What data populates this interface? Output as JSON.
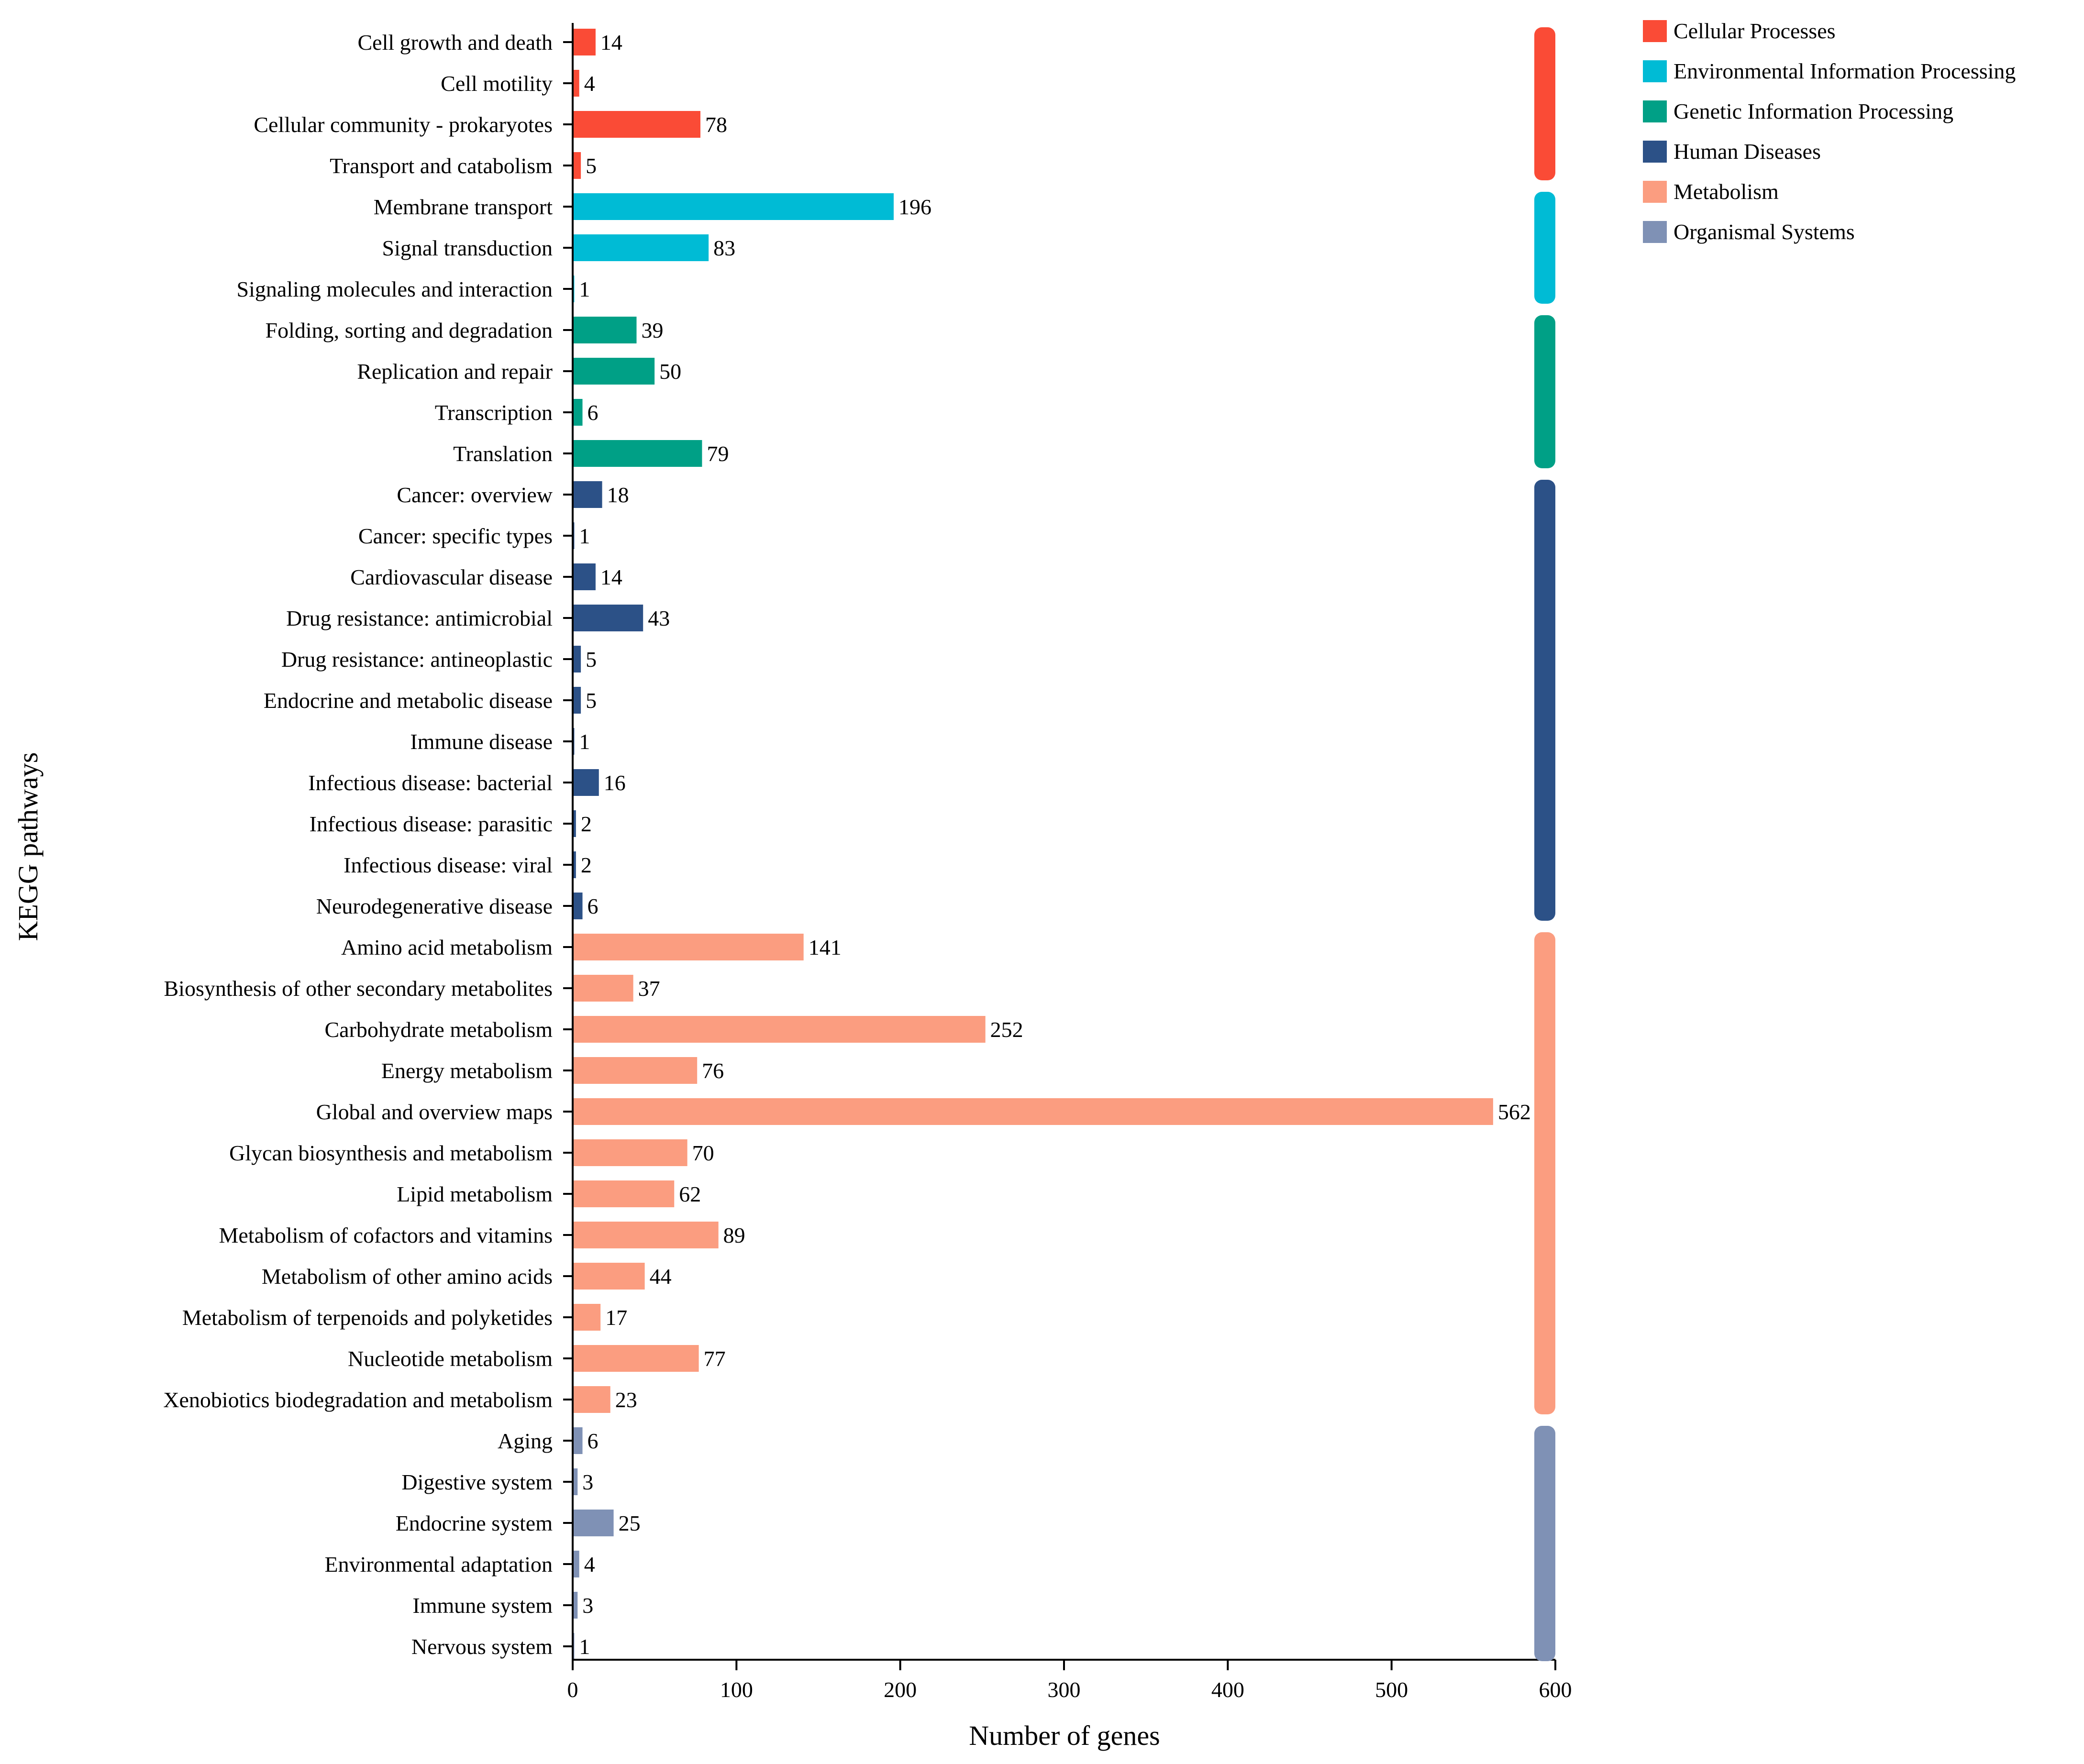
{
  "chart_data": {
    "type": "bar",
    "orientation": "horizontal",
    "xlabel": "Number of genes",
    "ylabel": "KEGG pathways",
    "xlim": [
      0,
      600
    ],
    "xticks": [
      "0",
      "100",
      "200",
      "300",
      "400",
      "500",
      "600"
    ],
    "grid": false,
    "legend_position": "top-right",
    "groups": [
      {
        "name": "Cellular Processes",
        "color": "#FA4B36"
      },
      {
        "name": "Environmental Information Processing",
        "color": "#00BBD5"
      },
      {
        "name": "Genetic Information Processing",
        "color": "#00A086"
      },
      {
        "name": "Human Diseases",
        "color": "#2C5187"
      },
      {
        "name": "Metabolism",
        "color": "#FB9D80"
      },
      {
        "name": "Organismal Systems",
        "color": "#7F91B5"
      }
    ],
    "categories": [
      "Cell growth and death",
      "Cell motility",
      "Cellular community - prokaryotes",
      "Transport and catabolism",
      "Membrane transport",
      "Signal transduction",
      "Signaling molecules and interaction",
      "Folding, sorting and degradation",
      "Replication and repair",
      "Transcription",
      "Translation",
      "Cancer: overview",
      "Cancer: specific types",
      "Cardiovascular disease",
      "Drug resistance: antimicrobial",
      "Drug resistance: antineoplastic",
      "Endocrine and metabolic disease",
      "Immune disease",
      "Infectious disease: bacterial",
      "Infectious disease: parasitic",
      "Infectious disease: viral",
      "Neurodegenerative disease",
      "Amino acid metabolism",
      "Biosynthesis of other secondary metabolites",
      "Carbohydrate metabolism",
      "Energy metabolism",
      "Global and overview maps",
      "Glycan biosynthesis and metabolism",
      "Lipid metabolism",
      "Metabolism of cofactors and vitamins",
      "Metabolism of other amino acids",
      "Metabolism of terpenoids and polyketides",
      "Nucleotide metabolism",
      "Xenobiotics biodegradation and metabolism",
      "Aging",
      "Digestive system",
      "Endocrine system",
      "Environmental adaptation",
      "Immune system",
      "Nervous system"
    ],
    "values": [
      14,
      4,
      78,
      5,
      196,
      83,
      1,
      39,
      50,
      6,
      79,
      18,
      1,
      14,
      43,
      5,
      5,
      1,
      16,
      2,
      2,
      6,
      141,
      37,
      252,
      76,
      562,
      70,
      62,
      89,
      44,
      17,
      77,
      23,
      6,
      3,
      25,
      4,
      3,
      1
    ],
    "value_labels": [
      "14",
      "4",
      "78",
      "5",
      "196",
      "83",
      "1",
      "39",
      "50",
      "6",
      "79",
      "18",
      "1",
      "14",
      "43",
      "5",
      "5",
      "1",
      "16",
      "2",
      "2",
      "6",
      "141",
      "37",
      "252",
      "76",
      "562",
      "70",
      "62",
      "89",
      "44",
      "17",
      "77",
      "23",
      "6",
      "3",
      "25",
      "4",
      "3",
      "1"
    ],
    "group_index": [
      0,
      0,
      0,
      0,
      1,
      1,
      1,
      2,
      2,
      2,
      2,
      3,
      3,
      3,
      3,
      3,
      3,
      3,
      3,
      3,
      3,
      3,
      4,
      4,
      4,
      4,
      4,
      4,
      4,
      4,
      4,
      4,
      4,
      4,
      5,
      5,
      5,
      5,
      5,
      5
    ]
  }
}
